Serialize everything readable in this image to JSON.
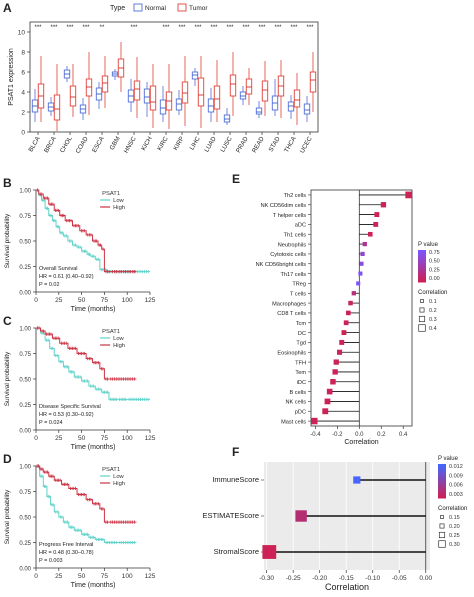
{
  "panels": {
    "A": {
      "letter": "A"
    },
    "B": {
      "letter": "B"
    },
    "C": {
      "letter": "C"
    },
    "D": {
      "letter": "D"
    },
    "E": {
      "letter": "E"
    },
    "F": {
      "letter": "F"
    }
  },
  "chart_data": [
    {
      "panel": "A",
      "type": "boxplot",
      "ylabel": "PSAT1 expression",
      "legend": {
        "title": "Type",
        "entries": [
          "Normal",
          "Tumor"
        ],
        "colors": [
          "#4F6FD8",
          "#E0423A"
        ],
        "placement": "top"
      },
      "categories": [
        "BLCA",
        "BRCA",
        "CHOL",
        "COAD",
        "ESCA",
        "GBM",
        "HNSC",
        "KICH",
        "KIRC",
        "KIRP",
        "LIHC",
        "LUAD",
        "LUSC",
        "PRAD",
        "READ",
        "STAD",
        "THCA",
        "UCEC"
      ],
      "significance": [
        "***",
        "***",
        "***",
        "***",
        "**",
        "",
        "***",
        "",
        "***",
        "***",
        "***",
        "***",
        "***",
        "***",
        "***",
        "***",
        "***",
        "***"
      ],
      "yticks": [
        0,
        2,
        4,
        6,
        8,
        10
      ],
      "ylim": [
        0,
        11
      ],
      "series": [
        {
          "name": "Normal",
          "boxes": [
            [
              1.0,
              2.0,
              2.6,
              3.2,
              4.3
            ],
            [
              1.6,
              2.1,
              2.5,
              2.9,
              3.5
            ],
            [
              5.0,
              5.4,
              5.8,
              6.2,
              6.6
            ],
            [
              1.2,
              1.9,
              2.3,
              2.7,
              3.4
            ],
            [
              2.3,
              3.2,
              3.8,
              4.4,
              5.0
            ],
            [
              5.2,
              5.6,
              5.8,
              6.0,
              6.3
            ],
            [
              2.0,
              3.0,
              3.6,
              4.2,
              5.3
            ],
            [
              1.5,
              2.9,
              3.5,
              4.3,
              5.0
            ],
            [
              1.0,
              1.8,
              2.4,
              3.2,
              4.6
            ],
            [
              1.7,
              2.2,
              2.8,
              3.3,
              4.2
            ],
            [
              4.6,
              5.3,
              5.7,
              6.0,
              6.4
            ],
            [
              1.0,
              2.0,
              2.6,
              3.3,
              4.4
            ],
            [
              0.7,
              1.0,
              1.3,
              1.7,
              2.4
            ],
            [
              2.7,
              3.3,
              3.6,
              4.0,
              4.6
            ],
            [
              1.4,
              1.8,
              2.0,
              2.4,
              3.1
            ],
            [
              1.6,
              2.2,
              2.9,
              3.6,
              5.3
            ],
            [
              1.3,
              2.1,
              2.6,
              3.0,
              3.7
            ],
            [
              1.0,
              1.8,
              2.2,
              2.8,
              3.6
            ]
          ]
        },
        {
          "name": "Tumor",
          "boxes": [
            [
              1.0,
              2.4,
              3.6,
              4.8,
              7.6
            ],
            [
              0.1,
              1.2,
              2.3,
              3.7,
              6.8
            ],
            [
              1.5,
              2.6,
              3.5,
              4.6,
              6.8
            ],
            [
              1.7,
              3.6,
              4.5,
              5.3,
              8.0
            ],
            [
              2.4,
              4.0,
              4.9,
              5.6,
              7.6
            ],
            [
              4.0,
              5.5,
              6.4,
              7.3,
              9.0
            ],
            [
              1.4,
              3.2,
              4.3,
              5.1,
              7.5
            ],
            [
              0.4,
              2.2,
              3.0,
              4.6,
              6.8
            ],
            [
              0.3,
              2.2,
              3.1,
              4.0,
              6.8
            ],
            [
              0.6,
              2.9,
              3.9,
              5.0,
              7.6
            ],
            [
              0.4,
              2.6,
              3.7,
              5.4,
              7.6
            ],
            [
              1.0,
              2.3,
              3.3,
              4.6,
              7.2
            ],
            [
              1.6,
              3.6,
              4.8,
              5.7,
              8.0
            ],
            [
              2.7,
              3.8,
              4.5,
              5.3,
              6.4
            ],
            [
              1.6,
              3.1,
              4.2,
              5.1,
              7.1
            ],
            [
              1.4,
              3.6,
              4.6,
              5.6,
              7.2
            ],
            [
              0.7,
              2.5,
              3.2,
              4.2,
              5.9
            ],
            [
              2.0,
              4.0,
              5.2,
              6.0,
              8.0
            ]
          ]
        }
      ]
    },
    {
      "panel": "B",
      "type": "line",
      "title": "",
      "xlabel": "Time (months)",
      "ylabel": "Survival probability",
      "xticks": [
        0,
        25,
        50,
        75,
        100,
        125
      ],
      "yticks": [
        0.0,
        0.25,
        0.5,
        0.75,
        1.0
      ],
      "xlim": [
        0,
        125
      ],
      "ylim": [
        0,
        1
      ],
      "legend": {
        "title": "PSAT1",
        "entries": [
          "Low",
          "High"
        ]
      },
      "annotations": [
        "Overall Survival",
        "HR = 0.61 (0.40–0.92)",
        "P = 0.02"
      ],
      "series": [
        {
          "name": "Low",
          "color": "#5fd3c9",
          "x": [
            0,
            3,
            6,
            10,
            14,
            18,
            22,
            26,
            30,
            35,
            40,
            45,
            50,
            56,
            60,
            65,
            70,
            78,
            85,
            95,
            105,
            125
          ],
          "y": [
            1.0,
            0.95,
            0.9,
            0.82,
            0.75,
            0.7,
            0.64,
            0.58,
            0.55,
            0.5,
            0.46,
            0.44,
            0.4,
            0.37,
            0.35,
            0.32,
            0.22,
            0.2,
            0.2,
            0.2,
            0.2,
            0.2
          ]
        },
        {
          "name": "High",
          "color": "#cc3344",
          "x": [
            0,
            3,
            8,
            14,
            20,
            26,
            32,
            40,
            48,
            55,
            62,
            68,
            72,
            75,
            82,
            110
          ],
          "y": [
            1.0,
            0.96,
            0.92,
            0.86,
            0.8,
            0.75,
            0.7,
            0.65,
            0.6,
            0.56,
            0.5,
            0.46,
            0.42,
            0.2,
            0.2,
            0.2
          ]
        }
      ]
    },
    {
      "panel": "C",
      "type": "line",
      "title": "",
      "xlabel": "Time (months)",
      "ylabel": "Survival probability",
      "xticks": [
        0,
        25,
        50,
        75,
        100,
        125
      ],
      "yticks": [
        0.0,
        0.25,
        0.5,
        0.75,
        1.0
      ],
      "xlim": [
        0,
        125
      ],
      "ylim": [
        0,
        1
      ],
      "legend": {
        "title": "PSAT1",
        "entries": [
          "Low",
          "High"
        ]
      },
      "annotations": [
        "Disease Specific Survival",
        "HR = 0.53 (0.30–0.92)",
        "P = 0.024"
      ],
      "series": [
        {
          "name": "Low",
          "color": "#5fd3c9",
          "x": [
            0,
            5,
            10,
            15,
            20,
            25,
            30,
            36,
            42,
            50,
            58,
            65,
            72,
            80,
            90,
            100,
            125
          ],
          "y": [
            1.0,
            0.95,
            0.88,
            0.8,
            0.73,
            0.67,
            0.62,
            0.57,
            0.52,
            0.48,
            0.43,
            0.4,
            0.37,
            0.3,
            0.3,
            0.3,
            0.3
          ]
        },
        {
          "name": "High",
          "color": "#cc3344",
          "x": [
            0,
            5,
            10,
            18,
            26,
            35,
            45,
            55,
            62,
            70,
            75,
            80,
            110
          ],
          "y": [
            1.0,
            0.97,
            0.94,
            0.9,
            0.85,
            0.8,
            0.75,
            0.7,
            0.66,
            0.6,
            0.5,
            0.5,
            0.5
          ]
        }
      ]
    },
    {
      "panel": "D",
      "type": "line",
      "title": "",
      "xlabel": "Time (months)",
      "ylabel": "Survival probability",
      "xticks": [
        0,
        25,
        50,
        75,
        100,
        125
      ],
      "yticks": [
        0.0,
        0.25,
        0.5,
        0.75,
        1.0
      ],
      "xlim": [
        0,
        125
      ],
      "ylim": [
        0,
        1
      ],
      "legend": {
        "title": "PSAT1",
        "entries": [
          "Low",
          "High"
        ]
      },
      "annotations": [
        "Progress Free Interval",
        "HR = 0.48 (0.30–0.78)",
        "P = 0.003"
      ],
      "series": [
        {
          "name": "Low",
          "color": "#5fd3c9",
          "x": [
            0,
            4,
            8,
            12,
            16,
            20,
            25,
            30,
            36,
            42,
            50,
            58,
            65,
            75,
            90,
            110
          ],
          "y": [
            1.0,
            0.9,
            0.8,
            0.7,
            0.62,
            0.55,
            0.5,
            0.45,
            0.4,
            0.37,
            0.33,
            0.3,
            0.28,
            0.25,
            0.25,
            0.25
          ]
        },
        {
          "name": "High",
          "color": "#cc3344",
          "x": [
            0,
            4,
            8,
            14,
            20,
            28,
            36,
            45,
            55,
            62,
            70,
            75,
            80,
            110
          ],
          "y": [
            1.0,
            0.97,
            0.94,
            0.9,
            0.86,
            0.82,
            0.78,
            0.72,
            0.67,
            0.63,
            0.58,
            0.45,
            0.45,
            0.45
          ]
        }
      ]
    },
    {
      "panel": "E",
      "type": "lollipop",
      "xlabel": "Correlation",
      "xticks": [
        -0.4,
        -0.2,
        0.0,
        0.2,
        0.4
      ],
      "xlim": [
        -0.44,
        0.48
      ],
      "legend_pvalue": {
        "title": "P value",
        "ticks": [
          "0.75",
          "0.50",
          "0.25",
          "0.00"
        ],
        "colors": [
          "#7a55ff",
          "#cc2255"
        ]
      },
      "legend_size": {
        "title": "Correlation",
        "entries": [
          "0.1",
          "0.2",
          "0.3",
          "0.4"
        ]
      },
      "categories": [
        "Th2 cells",
        "NK CD56dim cells",
        "T helper cells",
        "aDC",
        "Th1 cells",
        "Neutrophils",
        "Cytotoxic cells",
        "NK CD56bright cells",
        "Th17 cells",
        "TReg",
        "T cells",
        "Macrophages",
        "CD8 T cells",
        "Tcm",
        "DC",
        "Tgd",
        "Eosinophils",
        "TFH",
        "Tem",
        "iDC",
        "B cells",
        "NK cells",
        "pDC",
        "Mast cells"
      ],
      "values": [
        0.45,
        0.22,
        0.16,
        0.15,
        0.1,
        0.05,
        0.03,
        0.02,
        0.01,
        -0.01,
        -0.05,
        -0.08,
        -0.1,
        -0.12,
        -0.14,
        -0.16,
        -0.18,
        -0.21,
        -0.22,
        -0.24,
        -0.27,
        -0.29,
        -0.31,
        -0.41
      ],
      "pvalues": [
        0.0,
        0.0,
        0.0,
        0.0,
        0.01,
        0.3,
        0.6,
        0.7,
        0.8,
        0.85,
        0.2,
        0.04,
        0.02,
        0.01,
        0.0,
        0.0,
        0.0,
        0.0,
        0.0,
        0.0,
        0.0,
        0.0,
        0.0,
        0.0
      ]
    },
    {
      "panel": "F",
      "type": "lollipop",
      "xlabel": "Correlation",
      "xticks": [
        -0.3,
        -0.25,
        -0.2,
        -0.15,
        -0.1,
        -0.05,
        0.0
      ],
      "xlim": [
        -0.305,
        0.008
      ],
      "legend_pvalue": {
        "title": "P value",
        "ticks": [
          "0.012",
          "0.009",
          "0.006",
          "0.003"
        ],
        "colors": [
          "#4466ff",
          "#cc2255"
        ]
      },
      "legend_size": {
        "title": "Correlation",
        "entries": [
          "0.15",
          "0.20",
          "0.25",
          "0.30"
        ]
      },
      "categories": [
        "ImmuneScore",
        "ESTIMATEScore",
        "StromalScore"
      ],
      "values": [
        -0.13,
        -0.235,
        -0.295
      ],
      "pvalues": [
        0.012,
        0.002,
        0.0
      ]
    }
  ]
}
